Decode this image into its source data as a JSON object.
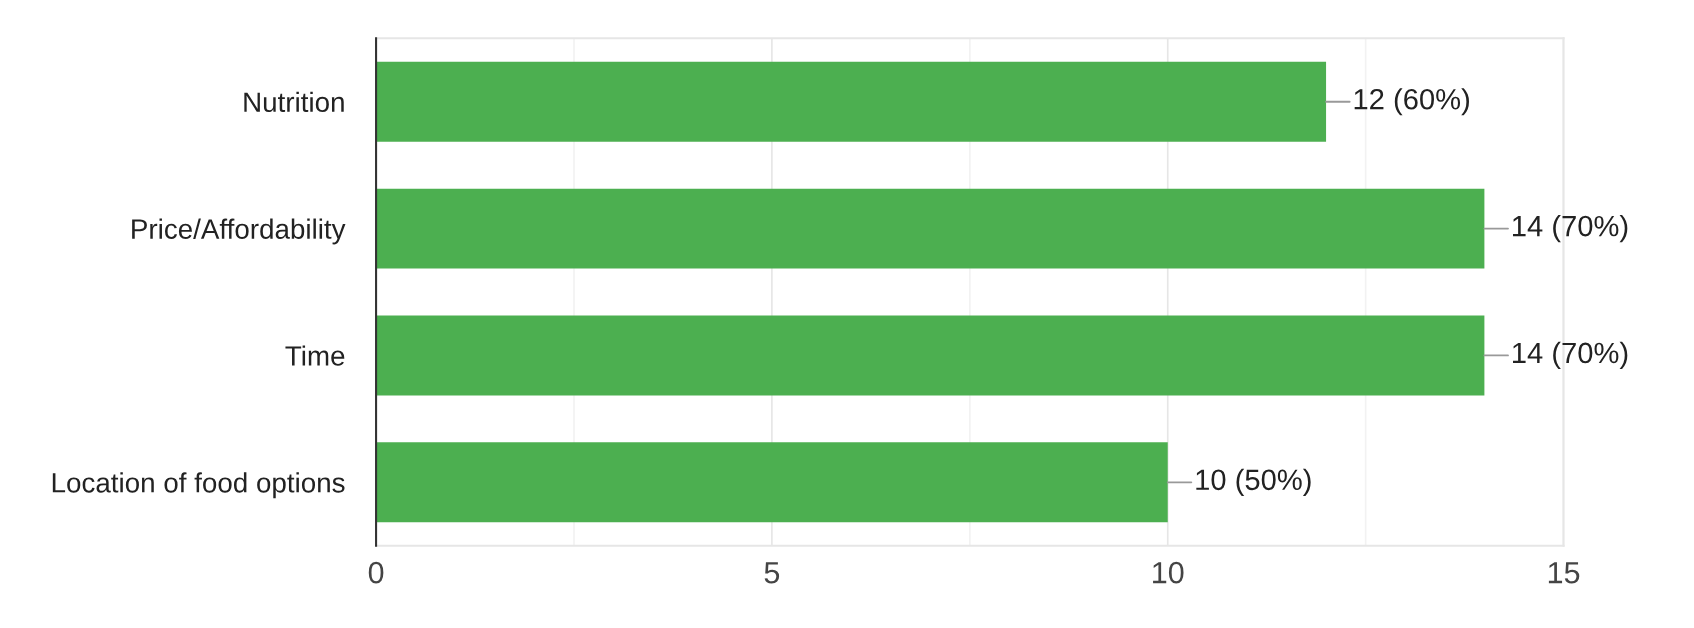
{
  "chart_data": {
    "type": "bar",
    "orientation": "horizontal",
    "categories": [
      "Nutrition",
      "Price/Affordability",
      "Time",
      "Location of food options"
    ],
    "values": [
      12,
      14,
      14,
      10
    ],
    "color": "#4caf50",
    "value_labels": [
      "12 (60%)",
      "14 (70%)",
      "14 (70%)",
      "10 (50%)"
    ],
    "xlim": [
      0,
      15
    ],
    "xticks": [
      0,
      {
        "value": 2.5,
        "label": null
      },
      5,
      {
        "value": 7.5,
        "label": null
      },
      10,
      {
        "value": 12.5,
        "label": null
      },
      15
    ],
    "grid": "x"
  }
}
